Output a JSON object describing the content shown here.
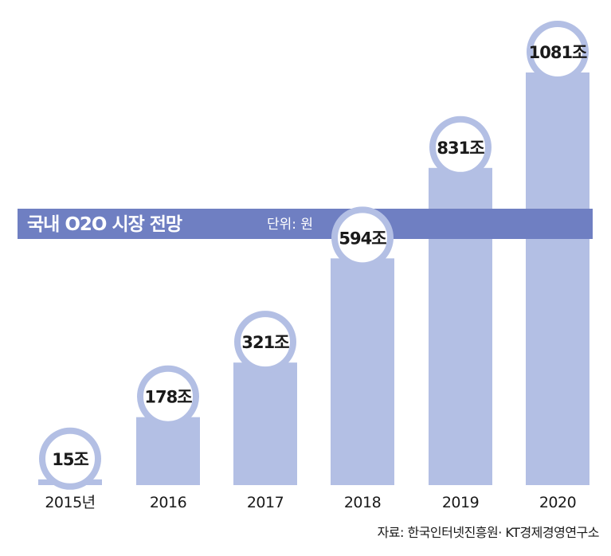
{
  "chart_data": {
    "type": "bar",
    "title": "국내 O2O 시장 전망",
    "unit_label": "단위: 원",
    "source": "자료: 한국인터넷진흥원· KT경제경영연구소",
    "categories": [
      "2015년",
      "2016",
      "2017",
      "2018",
      "2019",
      "2020"
    ],
    "values": [
      15,
      178,
      321,
      594,
      831,
      1081
    ],
    "value_labels": [
      "15조",
      "178조",
      "321조",
      "594조",
      "831조",
      "1081조"
    ],
    "ylim": [
      0,
      1081
    ],
    "grid": false,
    "colors": {
      "bar": "#b3bfe4",
      "banner": "#6f7fc2",
      "ring": "#b3bfe4"
    }
  }
}
